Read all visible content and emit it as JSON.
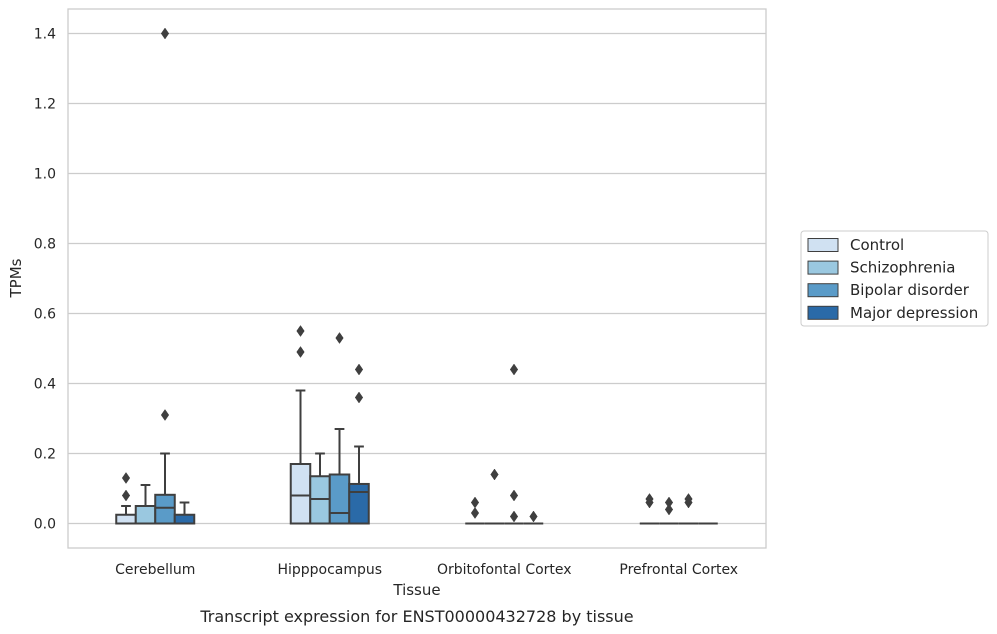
{
  "chart_data": {
    "type": "box",
    "title": "",
    "caption": "Transcript expression for ENST00000432728 by tissue",
    "xlabel": "Tissue",
    "ylabel": "TPMs",
    "ylim": [
      -0.07,
      1.47
    ],
    "yticks": [
      0.0,
      0.2,
      0.4,
      0.6,
      0.8,
      1.0,
      1.2,
      1.4
    ],
    "ytick_labels": [
      "0.0",
      "0.2",
      "0.4",
      "0.6",
      "0.8",
      "1.0",
      "1.2",
      "1.4"
    ],
    "grid": true,
    "legend_position": "right",
    "categories": [
      "Cerebellum",
      "Hipppocampus",
      "Orbitofontal Cortex",
      "Prefrontal Cortex"
    ],
    "series": [
      {
        "name": "Control",
        "color": "#d0e1f2",
        "boxes": [
          {
            "q1": 0.0,
            "median": 0.0,
            "q3": 0.025,
            "whislo": 0.0,
            "whishi": 0.05,
            "fliers": [
              0.08,
              0.13
            ]
          },
          {
            "q1": 0.0,
            "median": 0.08,
            "q3": 0.17,
            "whislo": 0.0,
            "whishi": 0.38,
            "fliers": [
              0.49,
              0.55
            ]
          },
          {
            "q1": 0.0,
            "median": 0.0,
            "q3": 0.0,
            "whislo": 0.0,
            "whishi": 0.0,
            "fliers": [
              0.03,
              0.06
            ]
          },
          {
            "q1": 0.0,
            "median": 0.0,
            "q3": 0.0,
            "whislo": 0.0,
            "whishi": 0.0,
            "fliers": [
              0.06,
              0.07
            ]
          }
        ]
      },
      {
        "name": "Schizophrenia",
        "color": "#9ac8e0",
        "boxes": [
          {
            "q1": 0.0,
            "median": 0.0,
            "q3": 0.05,
            "whislo": 0.0,
            "whishi": 0.11,
            "fliers": []
          },
          {
            "q1": 0.0,
            "median": 0.07,
            "q3": 0.135,
            "whislo": 0.0,
            "whishi": 0.2,
            "fliers": []
          },
          {
            "q1": 0.0,
            "median": 0.0,
            "q3": 0.0,
            "whislo": 0.0,
            "whishi": 0.0,
            "fliers": [
              0.14
            ]
          },
          {
            "q1": 0.0,
            "median": 0.0,
            "q3": 0.0,
            "whislo": 0.0,
            "whishi": 0.0,
            "fliers": [
              0.04,
              0.06
            ]
          }
        ]
      },
      {
        "name": "Bipolar disorder",
        "color": "#5a9bc8",
        "boxes": [
          {
            "q1": 0.0,
            "median": 0.045,
            "q3": 0.082,
            "whislo": 0.0,
            "whishi": 0.2,
            "fliers": [
              0.31,
              1.4
            ]
          },
          {
            "q1": 0.0,
            "median": 0.03,
            "q3": 0.14,
            "whislo": 0.0,
            "whishi": 0.27,
            "fliers": [
              0.53
            ]
          },
          {
            "q1": 0.0,
            "median": 0.0,
            "q3": 0.0,
            "whislo": 0.0,
            "whishi": 0.0,
            "fliers": [
              0.02,
              0.08,
              0.44
            ]
          },
          {
            "q1": 0.0,
            "median": 0.0,
            "q3": 0.0,
            "whislo": 0.0,
            "whishi": 0.0,
            "fliers": [
              0.06,
              0.07
            ]
          }
        ]
      },
      {
        "name": "Major depression",
        "color": "#2a6aa8",
        "boxes": [
          {
            "q1": 0.0,
            "median": 0.0,
            "q3": 0.025,
            "whislo": 0.0,
            "whishi": 0.06,
            "fliers": []
          },
          {
            "q1": 0.0,
            "median": 0.09,
            "q3": 0.113,
            "whislo": 0.0,
            "whishi": 0.22,
            "fliers": [
              0.36,
              0.44
            ]
          },
          {
            "q1": 0.0,
            "median": 0.0,
            "q3": 0.0,
            "whislo": 0.0,
            "whishi": 0.0,
            "fliers": [
              0.02
            ]
          },
          {
            "q1": 0.0,
            "median": 0.0,
            "q3": 0.0,
            "whislo": 0.0,
            "whishi": 0.0,
            "fliers": []
          }
        ]
      }
    ]
  }
}
